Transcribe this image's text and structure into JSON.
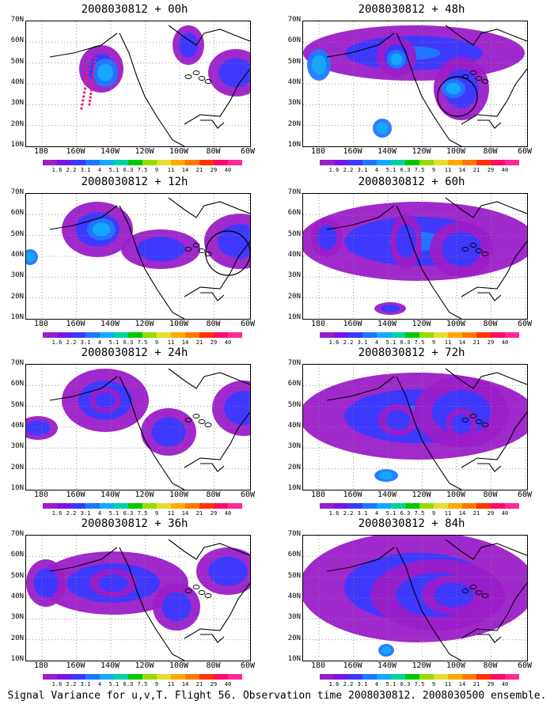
{
  "panels": [
    {
      "title": "2008030812 + 00h",
      "col": 0,
      "row": 0,
      "blobs": [
        [
          95,
          60,
          28,
          30
        ],
        [
          100,
          65,
          16,
          18
        ],
        [
          265,
          65,
          35,
          30
        ],
        [
          205,
          30,
          20,
          25
        ]
      ],
      "circle": null,
      "dots": true
    },
    {
      "title": "2008030812 + 12h",
      "col": 0,
      "row": 1,
      "blobs": [
        [
          90,
          45,
          45,
          35
        ],
        [
          95,
          45,
          18,
          14
        ],
        [
          170,
          70,
          50,
          25
        ],
        [
          270,
          60,
          45,
          35
        ],
        [
          5,
          80,
          10,
          10
        ]
      ],
      "circle": [
        255,
        75,
        28
      ],
      "dots": false
    },
    {
      "title": "2008030812 + 24h",
      "col": 0,
      "row": 2,
      "blobs": [
        [
          100,
          45,
          55,
          40
        ],
        [
          100,
          45,
          20,
          16
        ],
        [
          180,
          85,
          35,
          30
        ],
        [
          275,
          55,
          40,
          35
        ],
        [
          15,
          80,
          25,
          15
        ]
      ],
      "circle": null,
      "dots": false
    },
    {
      "title": "2008030812 + 36h",
      "col": 0,
      "row": 3,
      "blobs": [
        [
          110,
          60,
          95,
          40
        ],
        [
          110,
          60,
          30,
          18
        ],
        [
          190,
          90,
          30,
          30
        ],
        [
          255,
          45,
          40,
          30
        ],
        [
          25,
          60,
          25,
          30
        ]
      ],
      "circle": null,
      "dots": false
    },
    {
      "title": "2008030812 + 48h",
      "col": 1,
      "row": 0,
      "blobs": [
        [
          140,
          40,
          140,
          35
        ],
        [
          118,
          45,
          25,
          25
        ],
        [
          118,
          48,
          12,
          12
        ],
        [
          200,
          85,
          35,
          40
        ],
        [
          190,
          85,
          15,
          12
        ],
        [
          20,
          55,
          15,
          20
        ],
        [
          100,
          135,
          12,
          12
        ]
      ],
      "circle": [
        195,
        95,
        25
      ],
      "dots": false
    },
    {
      "title": "2008030812 + 60h",
      "col": 1,
      "row": 1,
      "blobs": [
        [
          145,
          60,
          150,
          50
        ],
        [
          130,
          60,
          20,
          35
        ],
        [
          200,
          70,
          40,
          35
        ],
        [
          30,
          55,
          20,
          25
        ],
        [
          110,
          145,
          20,
          8
        ]
      ],
      "circle": null,
      "dots": false
    },
    {
      "title": "2008030812 + 72h",
      "col": 1,
      "row": 2,
      "blobs": [
        [
          145,
          65,
          150,
          55
        ],
        [
          200,
          60,
          60,
          45
        ],
        [
          120,
          70,
          25,
          20
        ],
        [
          200,
          75,
          20,
          20
        ],
        [
          105,
          140,
          15,
          8
        ]
      ],
      "circle": null,
      "dots": false
    },
    {
      "title": "2008030812 + 84h",
      "col": 1,
      "row": 3,
      "blobs": [
        [
          145,
          65,
          150,
          70
        ],
        [
          170,
          75,
          85,
          45
        ],
        [
          190,
          75,
          40,
          25
        ],
        [
          105,
          145,
          10,
          8
        ]
      ],
      "circle": null,
      "dots": false
    }
  ],
  "lat_labels": [
    "70N",
    "60N",
    "50N",
    "40N",
    "30N",
    "20N",
    "10N"
  ],
  "lon_labels": [
    "180",
    "160W",
    "140W",
    "120W",
    "100W",
    "80W",
    "60W"
  ],
  "colorbar": {
    "colors": [
      "#9b1ec8",
      "#7a14e6",
      "#3a3aff",
      "#1e78ff",
      "#14aaff",
      "#00d2a0",
      "#00c800",
      "#96dc00",
      "#e6dc32",
      "#ffaa00",
      "#ff7800",
      "#ff3200",
      "#ff0a64",
      "#ff2896"
    ],
    "labels": [
      "1.6",
      "2.2",
      "3.1",
      "4",
      "5.1",
      "6.3",
      "7.5",
      "9",
      "11",
      "14",
      "21",
      "29",
      "40"
    ]
  },
  "caption": "Signal Variance for u,v,T. Flight 56. Observation time 2008030812. 2008030500 ensemble."
}
